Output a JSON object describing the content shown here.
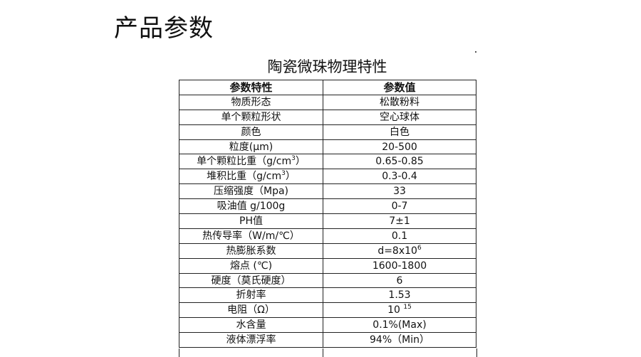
{
  "page_title": "产品参数",
  "table_title": "陶瓷微珠物理特性",
  "headers": [
    "参数特性",
    "参数值"
  ],
  "rows": [
    {
      "name": "物质形态",
      "value": "松散粉料"
    },
    {
      "name": "单个颗粒形状",
      "value": "空心球体"
    },
    {
      "name": "颜色",
      "value": "白色"
    },
    {
      "name": "粒度(μm)",
      "value": "20-500"
    },
    {
      "name": "单个颗粒比重（g/cm",
      "name_sup": "3",
      "name_after": "）",
      "value": "0.65-0.85"
    },
    {
      "name": "堆积比重（g/cm",
      "name_sup": "3",
      "name_after": "）",
      "value": "0.3-0.4"
    },
    {
      "name": "压缩强度（Mpa)",
      "value": "33"
    },
    {
      "name": "吸油值 g/100g",
      "value": "0-7"
    },
    {
      "name": "PH值",
      "value": "7±1"
    },
    {
      "name": "热传导率（W/m/℃）",
      "value": "0.1"
    },
    {
      "name": "热膨胀系数",
      "value": "d=8x10",
      "value_sup": "6"
    },
    {
      "name": "熔点 (℃)",
      "value": "1600-1800"
    },
    {
      "name": "硬度（莫氏硬度）",
      "value": "6"
    },
    {
      "name": "折射率",
      "value": "1.53"
    },
    {
      "name": "电阻（Ω）",
      "value": "10 ",
      "value_sup": "15"
    },
    {
      "name": "水含量",
      "value": "0.1%(Max)"
    },
    {
      "name": "液体漂浮率",
      "value": "94%（Min）"
    }
  ]
}
